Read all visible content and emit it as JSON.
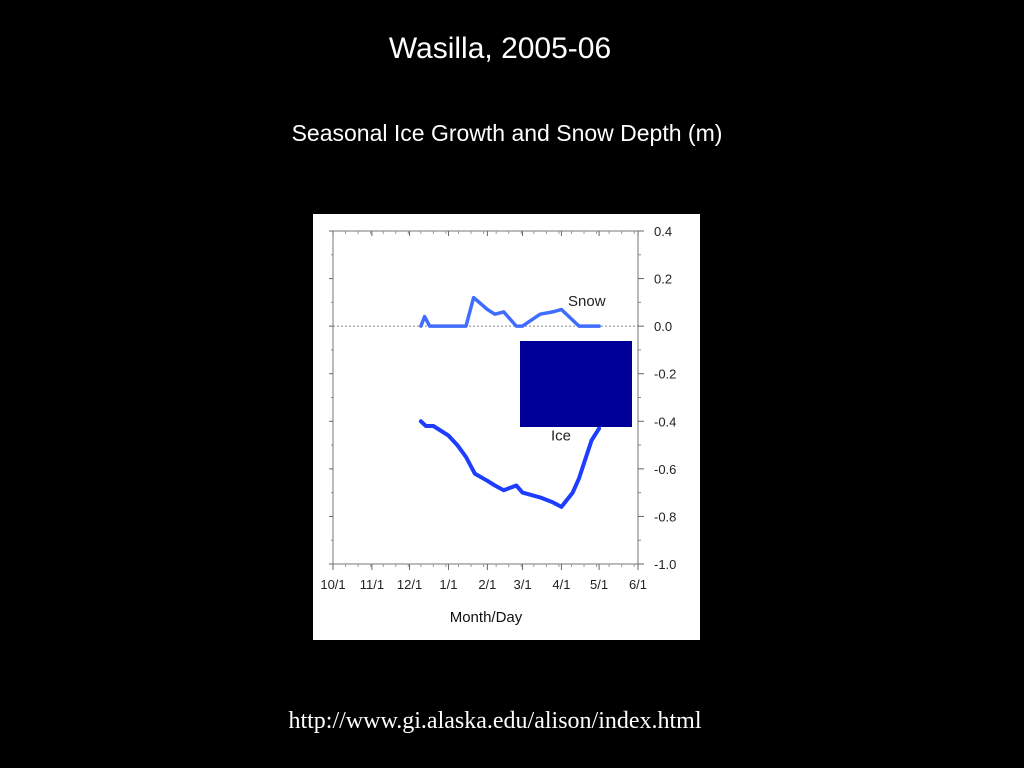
{
  "slide": {
    "title": "Wasilla, 2005-06",
    "subtitle": "Seasonal Ice Growth and Snow Depth (m)",
    "source_url": "http://www.gi.alaska.edu/alison/index.html"
  },
  "chart_data": {
    "type": "line",
    "xlabel": "Month/Day",
    "ylabel": "",
    "x_ticks": [
      "10/1",
      "11/1",
      "12/1",
      "1/1",
      "2/1",
      "3/1",
      "4/1",
      "5/1",
      "6/1"
    ],
    "y_ticks": [
      0.4,
      0.2,
      0.0,
      -0.2,
      -0.4,
      -0.6,
      -0.8,
      -1.0
    ],
    "ylim": [
      -1.0,
      0.4
    ],
    "xlim": [
      "10/1",
      "6/1"
    ],
    "y_axis_side": "right",
    "zero_line": true,
    "colors": {
      "snow": "#3f6dff",
      "ice": "#1e3dff",
      "overlay": "#000099"
    },
    "series": [
      {
        "name": "Snow",
        "x": [
          "12/10",
          "12/13",
          "12/17",
          "12/25",
          "1/5",
          "1/15",
          "1/21",
          "2/1",
          "2/7",
          "2/14",
          "2/24",
          "3/1",
          "3/15",
          "3/25",
          "4/1",
          "4/15",
          "4/25",
          "5/1"
        ],
        "values": [
          0.0,
          0.04,
          0.0,
          0.0,
          0.0,
          0.0,
          0.12,
          0.07,
          0.05,
          0.06,
          0.0,
          0.0,
          0.05,
          0.06,
          0.07,
          0.0,
          0.0,
          0.0
        ]
      },
      {
        "name": "Ice",
        "x": [
          "12/10",
          "12/14",
          "12/20",
          "1/1",
          "1/8",
          "1/15",
          "1/22",
          "2/1",
          "2/7",
          "2/14",
          "2/24",
          "3/1",
          "3/15",
          "3/25",
          "4/1",
          "4/10",
          "4/15",
          "4/20",
          "4/25",
          "5/1"
        ],
        "values": [
          -0.4,
          -0.42,
          -0.42,
          -0.46,
          -0.5,
          -0.55,
          -0.62,
          -0.65,
          -0.67,
          -0.69,
          -0.67,
          -0.7,
          -0.72,
          -0.74,
          -0.76,
          -0.7,
          -0.64,
          -0.56,
          -0.48,
          -0.43
        ]
      }
    ]
  }
}
